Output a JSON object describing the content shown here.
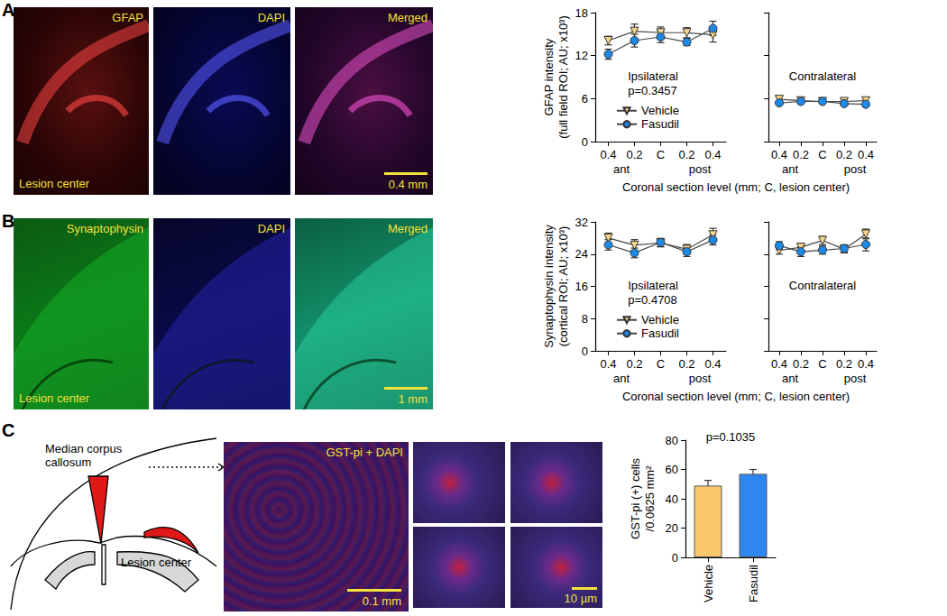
{
  "figure": {
    "panels": [
      {
        "label": "A",
        "images": [
          {
            "channel": "GFAP",
            "note": "Lesion center"
          },
          {
            "channel": "DAPI"
          },
          {
            "channel": "Merged",
            "scale_bar": "0.4 mm"
          }
        ]
      },
      {
        "label": "B",
        "images": [
          {
            "channel": "Synaptophysin",
            "note": "Lesion center"
          },
          {
            "channel": "DAPI"
          },
          {
            "channel": "Merged",
            "scale_bar": "1 mm"
          }
        ]
      },
      {
        "label": "C",
        "schematic": [
          "Median corpus\ncallosum",
          "Lesion center"
        ],
        "images": [
          {
            "channel": "GST-pi + DAPI",
            "scale_bar": "0.1 mm"
          }
        ],
        "insets_scale_bar": "10 µm"
      }
    ]
  },
  "chart_data": [
    {
      "type": "line",
      "title": "Ipsilateral",
      "annotation": "p=0.3457",
      "y_label": "GFAP intensity\n(full field ROI; AU; x10³)",
      "x_label": "Coronal section level (mm; C, lesion center)",
      "categories": [
        "0.4",
        "0.2",
        "C",
        "0.2",
        "0.4"
      ],
      "x_annotations": [
        "ant",
        "post"
      ],
      "ylim": [
        0,
        18
      ],
      "yticks": [
        0,
        6,
        12,
        18
      ],
      "grid": false,
      "legend": "lower left",
      "series": [
        {
          "name": "Vehicle",
          "color": "#f6d488",
          "marker": "triangle-down",
          "values": [
            14.1,
            15.4,
            15.2,
            15.2,
            14.9
          ],
          "errors": [
            0.6,
            1.0,
            0.8,
            0.7,
            1.0
          ]
        },
        {
          "name": "Fasudil",
          "color": "#1e88e5",
          "marker": "circle",
          "values": [
            12.2,
            14.1,
            14.6,
            13.9,
            15.8
          ],
          "errors": [
            0.7,
            0.9,
            0.8,
            0.5,
            1.0
          ]
        }
      ]
    },
    {
      "type": "line",
      "title": "Contralateral",
      "categories": [
        "0.4",
        "0.2",
        "C",
        "0.2",
        "0.4"
      ],
      "x_annotations": [
        "ant",
        "post"
      ],
      "ylim": [
        0,
        18
      ],
      "yticks": [
        0,
        6,
        12,
        18
      ],
      "grid": false,
      "tick_labels": "x",
      "series": [
        {
          "name": "Vehicle",
          "color": "#f6d488",
          "marker": "triangle-down",
          "values": [
            5.9,
            5.7,
            5.6,
            5.6,
            5.7
          ],
          "errors": [
            0.3,
            0.2,
            0.2,
            0.2,
            0.3
          ]
        },
        {
          "name": "Fasudil",
          "color": "#1e88e5",
          "marker": "circle",
          "values": [
            5.4,
            5.6,
            5.6,
            5.3,
            5.2
          ],
          "errors": [
            0.3,
            0.2,
            0.2,
            0.2,
            0.3
          ]
        }
      ]
    },
    {
      "type": "line",
      "title": "Ipsilateral",
      "annotation": "p=0.4708",
      "y_label": "Synaptophysin intensity\n(cortical ROI; AU; x10³)",
      "x_label": "Coronal section level (mm; C, lesion center)",
      "categories": [
        "0.4",
        "0.2",
        "C",
        "0.2",
        "0.4"
      ],
      "x_annotations": [
        "ant",
        "post"
      ],
      "ylim": [
        0,
        32
      ],
      "yticks": [
        0,
        8,
        16,
        24,
        32
      ],
      "grid": false,
      "legend": "lower left",
      "series": [
        {
          "name": "Vehicle",
          "color": "#f6d488",
          "marker": "triangle-down",
          "values": [
            28.0,
            26.2,
            26.8,
            25.2,
            28.8
          ],
          "errors": [
            1.2,
            1.4,
            1.0,
            1.2,
            1.6
          ]
        },
        {
          "name": "Fasudil",
          "color": "#1e88e5",
          "marker": "circle",
          "values": [
            26.3,
            24.3,
            26.9,
            24.6,
            27.5
          ],
          "errors": [
            1.3,
            1.2,
            1.0,
            1.2,
            1.2
          ]
        }
      ]
    },
    {
      "type": "line",
      "title": "Contralateral",
      "categories": [
        "0.4",
        "0.2",
        "C",
        "0.2",
        "0.4"
      ],
      "x_annotations": [
        "ant",
        "post"
      ],
      "ylim": [
        0,
        32
      ],
      "yticks": [
        0,
        8,
        16,
        24,
        32
      ],
      "grid": false,
      "tick_labels": "x",
      "series": [
        {
          "name": "Vehicle",
          "color": "#f6d488",
          "marker": "triangle-down",
          "values": [
            24.9,
            25.7,
            27.4,
            25.2,
            29.0
          ],
          "errors": [
            0.9,
            1.0,
            1.0,
            0.9,
            1.2
          ]
        },
        {
          "name": "Fasudil",
          "color": "#1e88e5",
          "marker": "circle",
          "values": [
            26.1,
            24.6,
            25.0,
            25.4,
            26.4
          ],
          "errors": [
            1.0,
            1.2,
            1.0,
            0.9,
            1.6
          ]
        }
      ]
    },
    {
      "type": "bar",
      "annotation": "p=0.1035",
      "y_label": "GST-pi (+) cells\n/0.0625 mm²",
      "categories": [
        "Vehicle",
        "Fasudil"
      ],
      "values": [
        49,
        57
      ],
      "errors": [
        3.5,
        3.0
      ],
      "colors": [
        "#f9c86a",
        "#2f86ee"
      ],
      "ylim": [
        0,
        80
      ],
      "yticks": [
        0,
        20,
        40,
        60,
        80
      ],
      "grid": false
    }
  ]
}
